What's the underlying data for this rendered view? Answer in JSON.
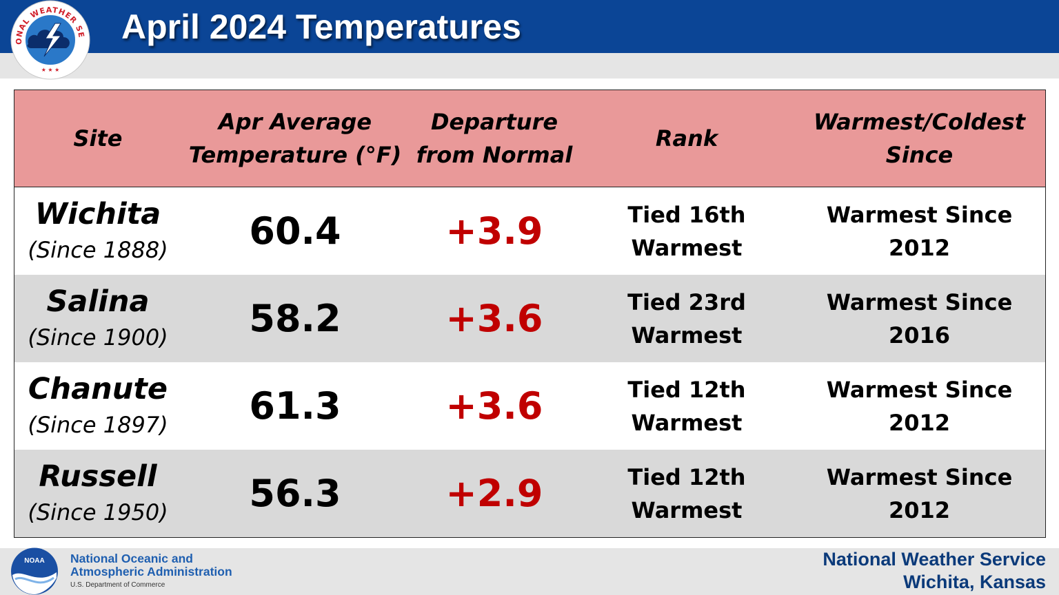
{
  "header": {
    "title": "April 2024 Temperatures",
    "logo_text": "NATIONAL WEATHER SERVICE",
    "bar_color": "#0b4596"
  },
  "table": {
    "header_color": "#e99999",
    "columns": [
      {
        "line1": "Site",
        "line2": ""
      },
      {
        "line1": "Apr Average",
        "line2": "Temperature (°F)"
      },
      {
        "line1": "Departure",
        "line2": "from Normal"
      },
      {
        "line1": "Rank",
        "line2": ""
      },
      {
        "line1": "Warmest/Coldest",
        "line2": "Since"
      }
    ],
    "rows": [
      {
        "site": "Wichita",
        "since": "(Since 1888)",
        "avg": "60.4",
        "departure": "+3.9",
        "rank1": "Tied 16th",
        "rank2": "Warmest",
        "since1": "Warmest Since",
        "since2": "2012"
      },
      {
        "site": "Salina",
        "since": "(Since 1900)",
        "avg": "58.2",
        "departure": "+3.6",
        "rank1": "Tied 23rd",
        "rank2": "Warmest",
        "since1": "Warmest Since",
        "since2": "2016"
      },
      {
        "site": "Chanute",
        "since": "(Since 1897)",
        "avg": "61.3",
        "departure": "+3.6",
        "rank1": "Tied 12th",
        "rank2": "Warmest",
        "since1": "Warmest Since",
        "since2": "2012"
      },
      {
        "site": "Russell",
        "since": "(Since 1950)",
        "avg": "56.3",
        "departure": "+2.9",
        "rank1": "Tied 12th",
        "rank2": "Warmest",
        "since1": "Warmest Since",
        "since2": "2012"
      }
    ],
    "departure_color": "#c00000",
    "alt_row_color": "#d9d9d9"
  },
  "footer": {
    "noaa_line1": "National Oceanic and",
    "noaa_line2": "Atmospheric Administration",
    "noaa_sub": "U.S. Department of Commerce",
    "noaa_logo_text": "NOAA",
    "nws_line1": "National Weather Service",
    "nws_line2": "Wichita, Kansas"
  }
}
